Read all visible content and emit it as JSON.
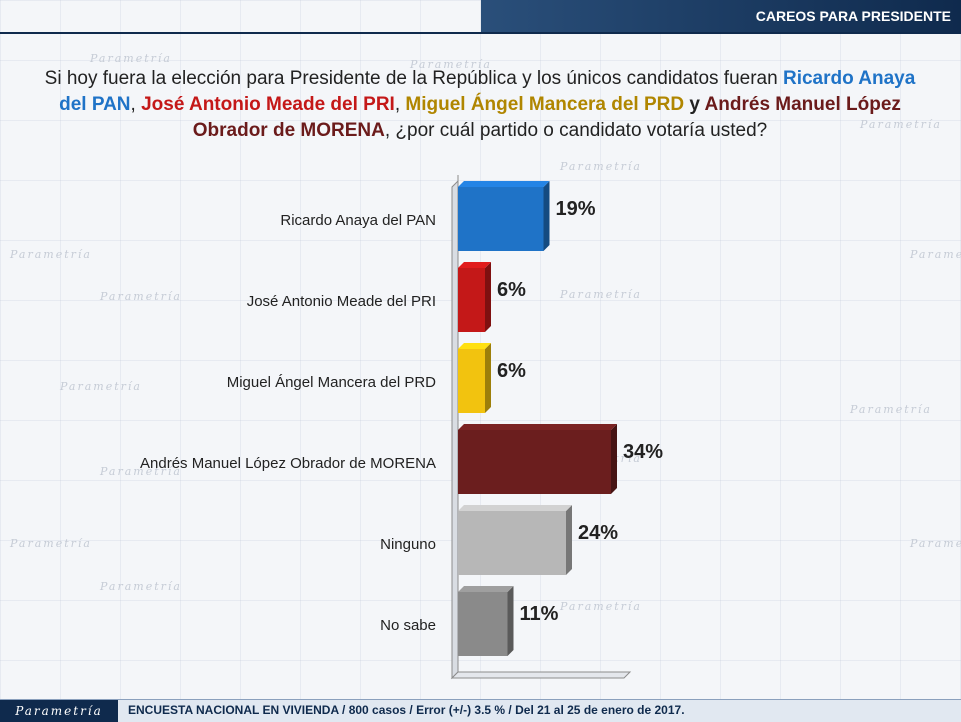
{
  "header": {
    "title": "CAREOS PARA PRESIDENTE"
  },
  "question": {
    "part1": "Si hoy fuera la elección para Presidente de la República y los únicos candidatos fueran ",
    "pan": "Ricardo Anaya del PAN",
    "sep1": ", ",
    "pri": "José Antonio Meade del PRI",
    "sep2": ", ",
    "prd": "Miguel Ángel Mancera del PRD",
    "sep3": " y ",
    "morena": "Andrés Manuel López Obrador de MORENA",
    "part2": ", ¿por cuál partido o candidato votaría usted?"
  },
  "watermark": "Parametría",
  "footer": {
    "logo": "Parametría",
    "text": "ENCUESTA NACIONAL EN VIVIENDA / 800 casos / Error (+/-) 3.5 % / Del 21 al 25 de enero de 2017."
  },
  "colors": {
    "pan": "#1f73c7",
    "pri": "#c41818",
    "prd": "#f2c30f",
    "morena": "#6b1e1e",
    "ninguno": "#b7b7b7",
    "nosabe": "#8a8a8a"
  },
  "chart_data": {
    "type": "bar",
    "orientation": "horizontal",
    "categories": [
      "Ricardo Anaya del PAN",
      "José Antonio Meade del PRI",
      "Miguel Ángel Mancera del PRD",
      "Andrés Manuel López Obrador de MORENA",
      "Ninguno",
      "No sabe"
    ],
    "values": [
      19,
      6,
      6,
      34,
      24,
      11
    ],
    "labels": [
      "19%",
      "6%",
      "6%",
      "34%",
      "24%",
      "11%"
    ],
    "colors": [
      "#1f73c7",
      "#c41818",
      "#f2c30f",
      "#6b1e1e",
      "#b7b7b7",
      "#8a8a8a"
    ],
    "xlim": [
      0,
      40
    ],
    "title": "",
    "xlabel": "",
    "ylabel": "",
    "grid": false,
    "legend": "none"
  }
}
